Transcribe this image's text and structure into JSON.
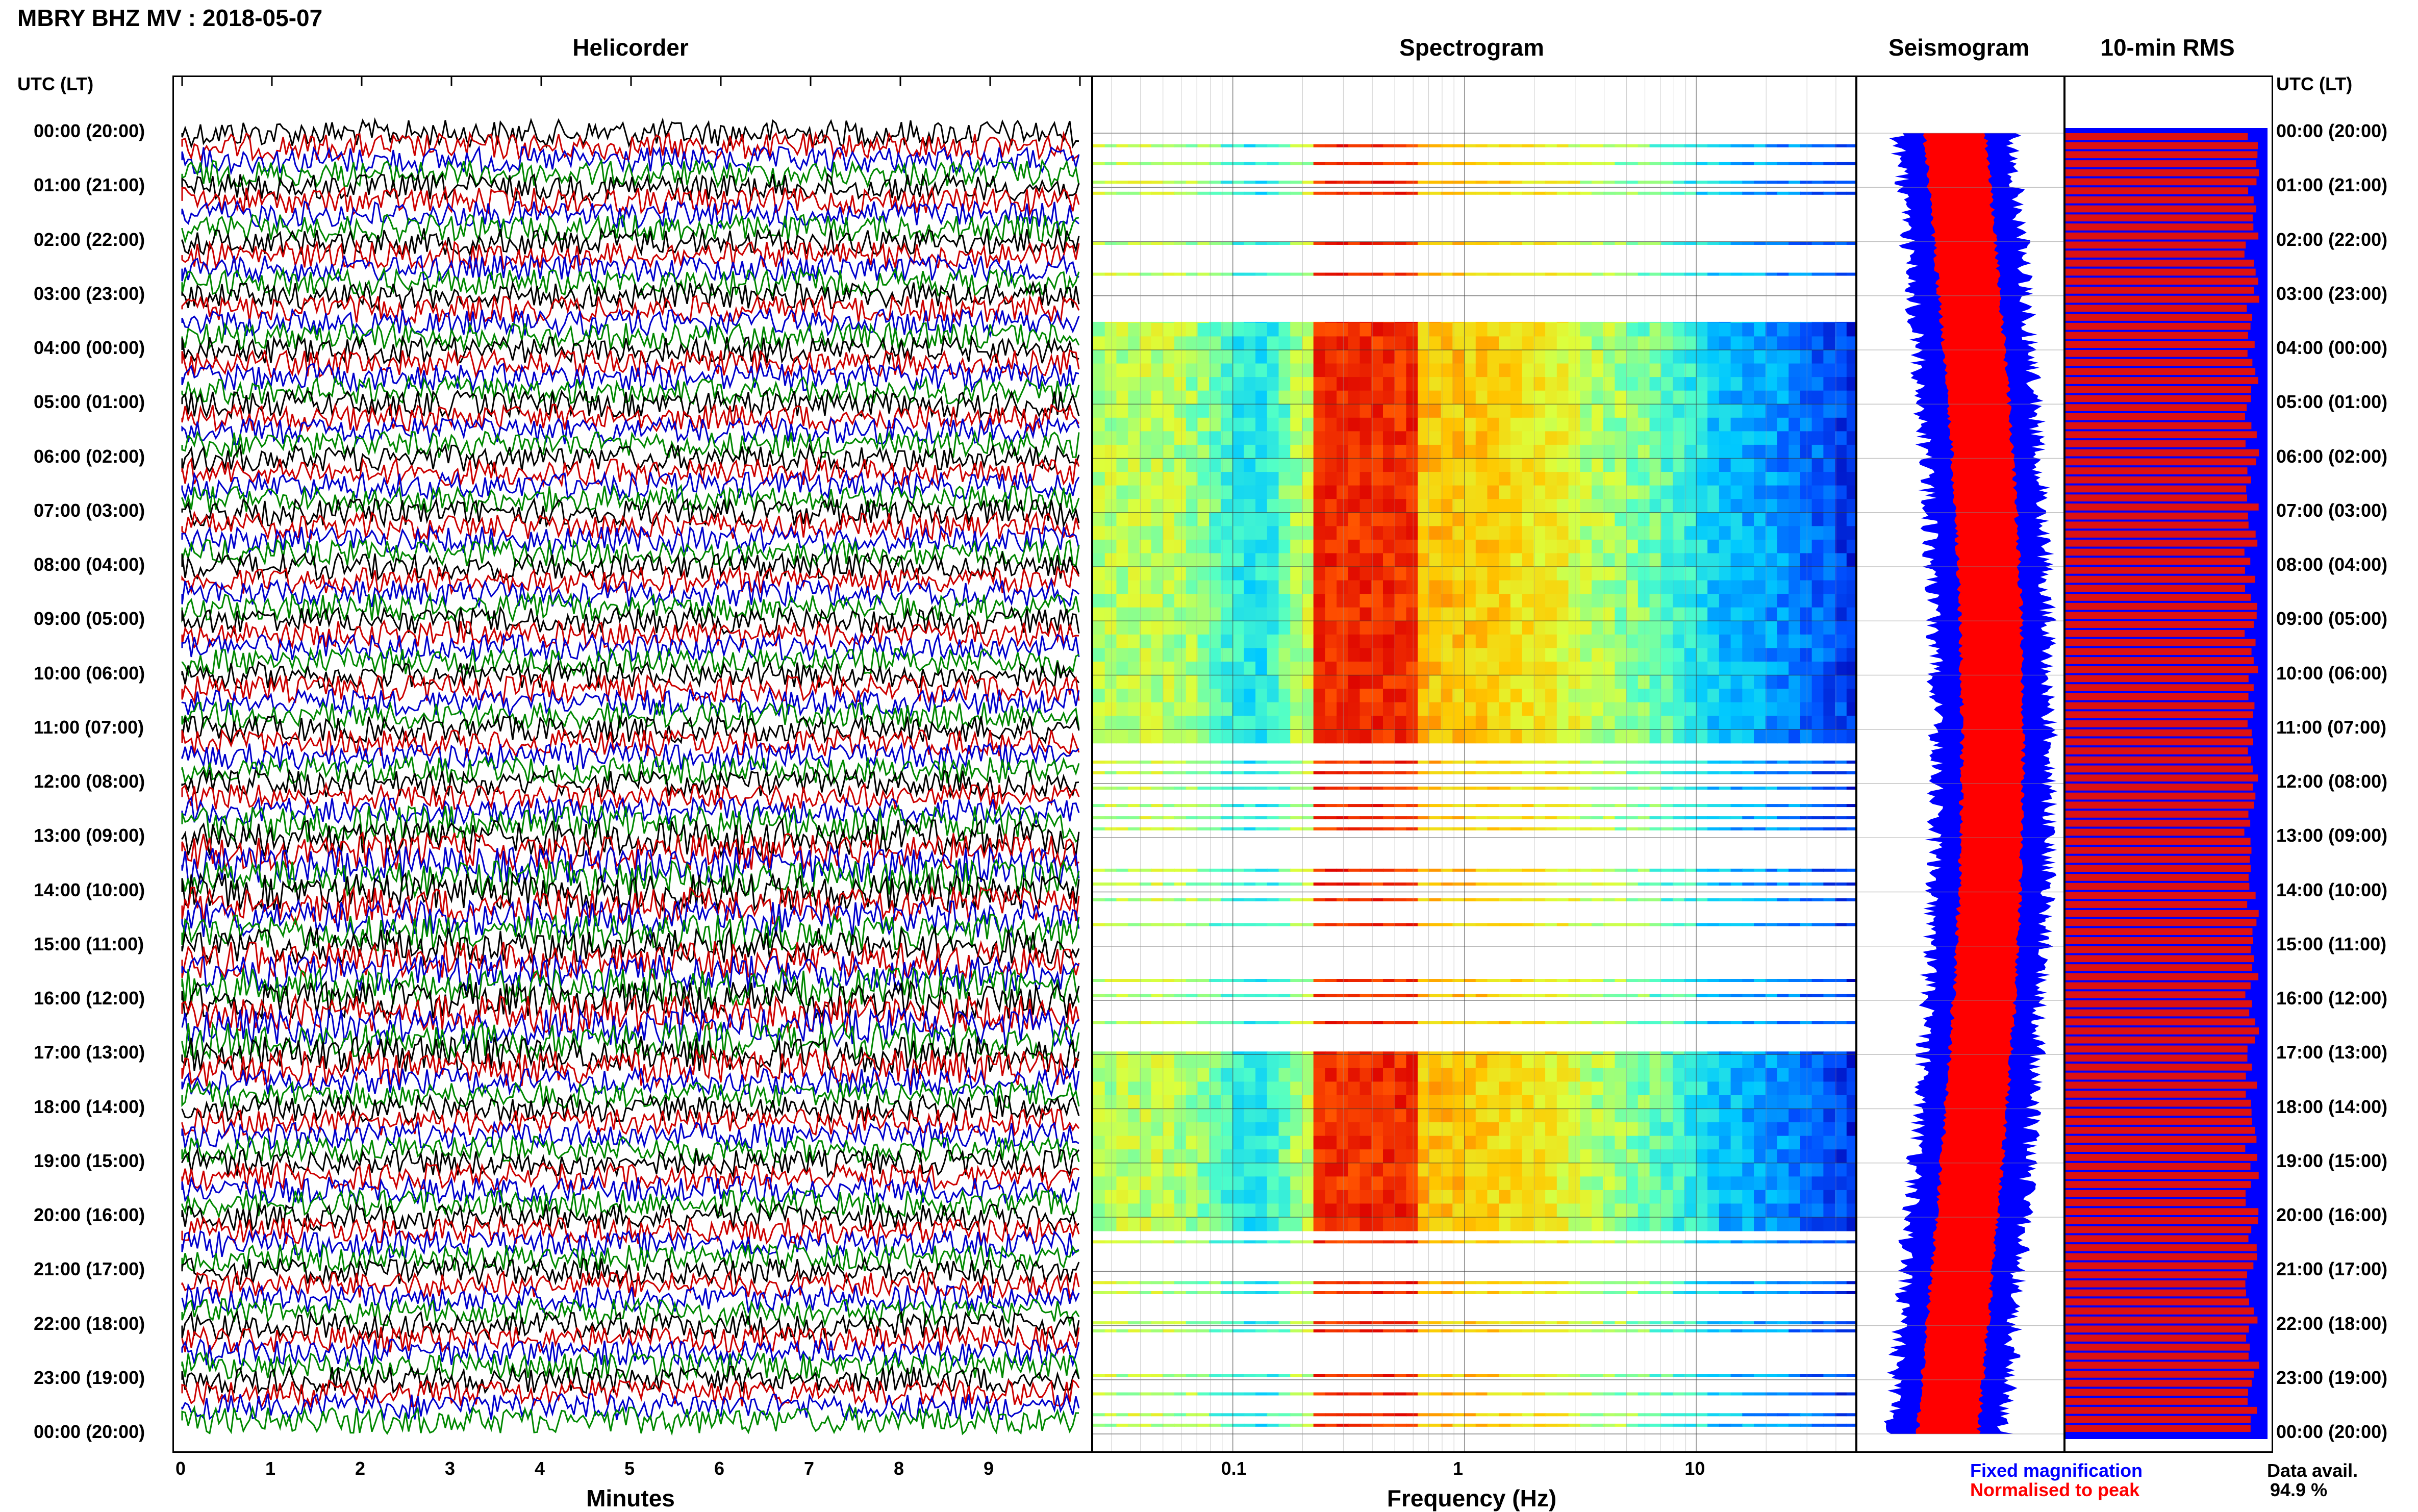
{
  "header": {
    "title": "MBRY BHZ MV : 2018-05-07",
    "utc_left": "UTC (LT)",
    "utc_right": "UTC (LT)"
  },
  "panels": {
    "helicorder": "Helicorder",
    "spectrogram": "Spectrogram",
    "seismogram": "Seismogram",
    "rms": "10-min RMS"
  },
  "axes": {
    "minutes_label": "Minutes",
    "freq_label": "Frequency (Hz)",
    "minute_ticks": [
      "0",
      "1",
      "2",
      "3",
      "4",
      "5",
      "6",
      "7",
      "8",
      "9"
    ],
    "freq_ticks": [
      "0.1",
      "1",
      "10"
    ]
  },
  "time_labels": [
    "00:00 (20:00)",
    "01:00 (21:00)",
    "02:00 (22:00)",
    "03:00 (23:00)",
    "04:00 (00:00)",
    "05:00 (01:00)",
    "06:00 (02:00)",
    "07:00 (03:00)",
    "08:00 (04:00)",
    "09:00 (05:00)",
    "10:00 (06:00)",
    "11:00 (07:00)",
    "12:00 (08:00)",
    "13:00 (09:00)",
    "14:00 (10:00)",
    "15:00 (11:00)",
    "16:00 (12:00)",
    "17:00 (13:00)",
    "18:00 (14:00)",
    "19:00 (15:00)",
    "20:00 (16:00)",
    "21:00 (17:00)",
    "22:00 (18:00)",
    "23:00 (19:00)",
    "00:00 (20:00)"
  ],
  "legend": {
    "fixed": "Fixed magnification",
    "normalised": "Normalised to peak",
    "fixed_color": "#0000ff",
    "normalised_color": "#ff0000",
    "data_avail_label": "Data avail.",
    "data_avail_value": "94.9 %"
  },
  "chart_data": {
    "type": "heatmap",
    "title": "MBRY BHZ MV : 2018-05-07",
    "helicorder": {
      "x_label": "Minutes",
      "x_range": [
        0,
        10
      ],
      "trace_colors": [
        "#000000",
        "#cc0000",
        "#0000cc",
        "#008800"
      ]
    },
    "spectrogram": {
      "x_label": "Frequency (Hz)",
      "x_scale": "log",
      "x_range": [
        0.025,
        50
      ],
      "full_data_hours": [
        [
          3.3,
          11.1
        ],
        [
          17.0,
          20.2
        ]
      ],
      "peak_band_hz": [
        0.2,
        0.6
      ]
    },
    "seismogram": {
      "series": [
        "Fixed magnification",
        "Normalised to peak"
      ]
    },
    "rms": {
      "interval": "10-min",
      "colors": [
        "#ff0000",
        "#0000ff"
      ]
    },
    "data_availability_percent": 94.9
  }
}
